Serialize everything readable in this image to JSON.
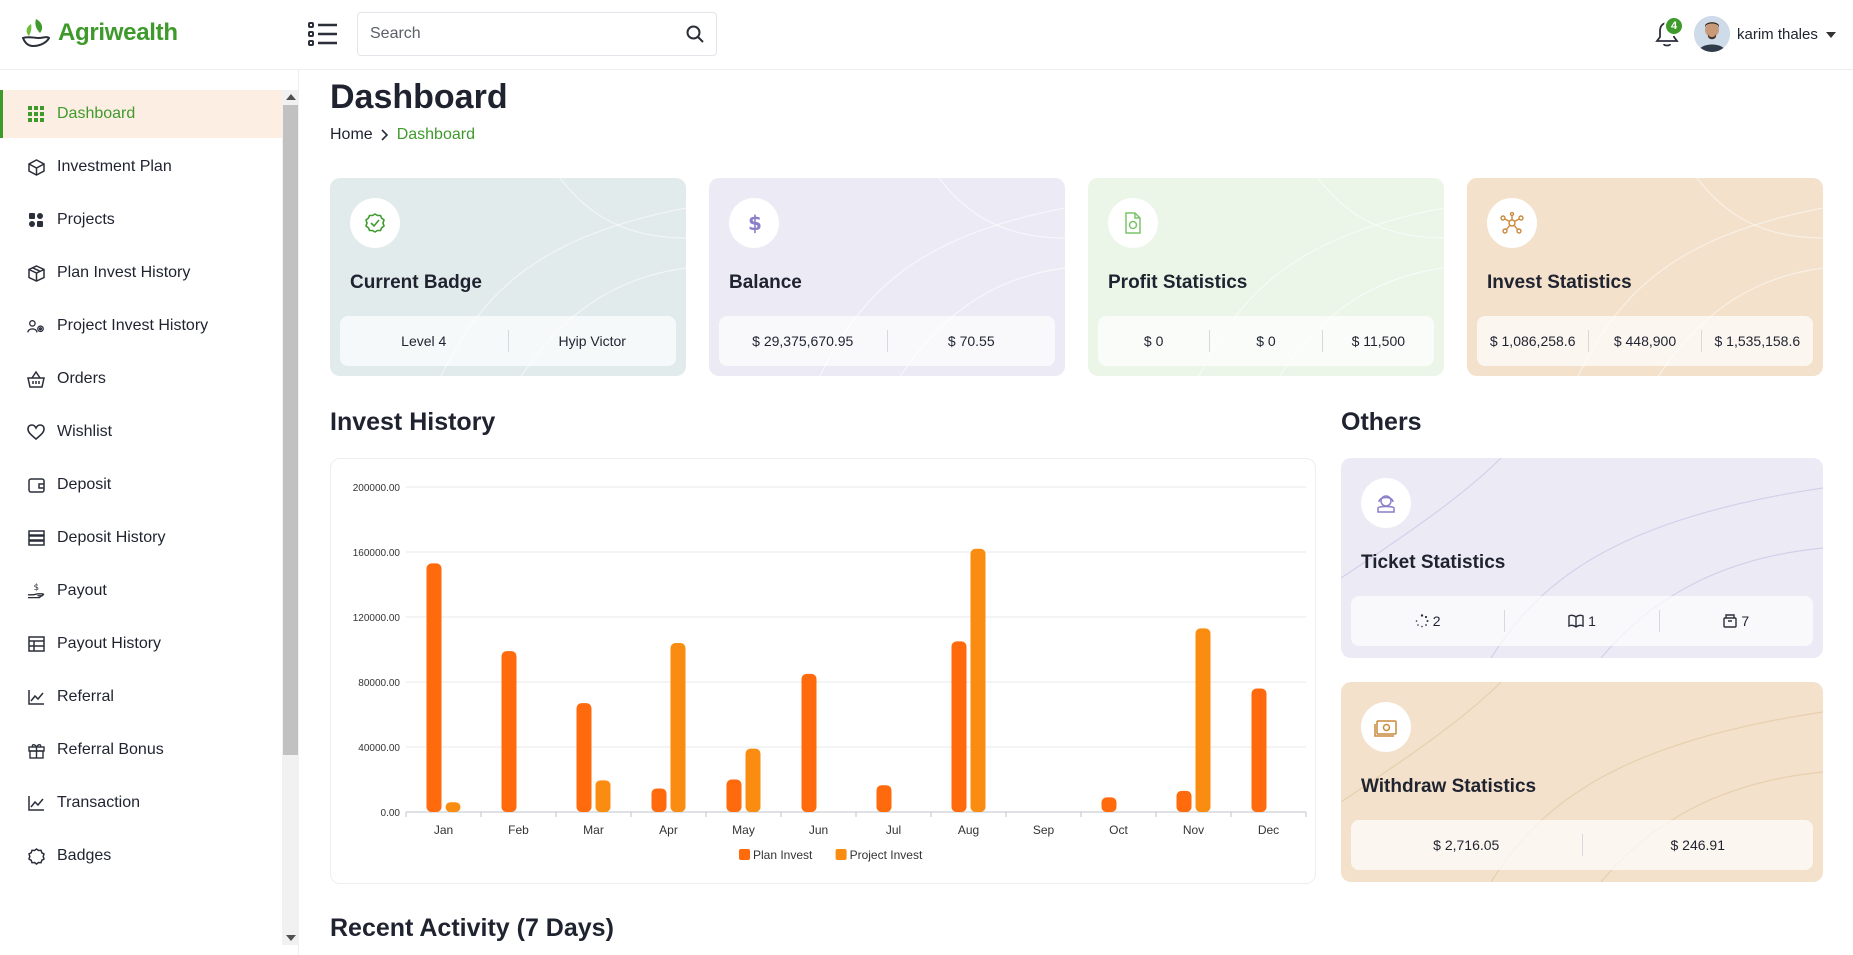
{
  "app": {
    "brand": "Agriwealth"
  },
  "search": {
    "placeholder": "Search"
  },
  "notifications": {
    "count": "4"
  },
  "user": {
    "name": "karim thales"
  },
  "sidebar": {
    "items": [
      {
        "label": "Dashboard",
        "icon": "grid-icon",
        "active": true
      },
      {
        "label": "Investment Plan",
        "icon": "cube-icon"
      },
      {
        "label": "Projects",
        "icon": "puzzle-icon"
      },
      {
        "label": "Plan Invest History",
        "icon": "box-icon"
      },
      {
        "label": "Project Invest History",
        "icon": "people-gear-icon"
      },
      {
        "label": "Orders",
        "icon": "basket-icon"
      },
      {
        "label": "Wishlist",
        "icon": "heart-icon"
      },
      {
        "label": "Deposit",
        "icon": "wallet-icon"
      },
      {
        "label": "Deposit History",
        "icon": "server-icon"
      },
      {
        "label": "Payout",
        "icon": "hand-dollar-icon"
      },
      {
        "label": "Payout History",
        "icon": "table-icon"
      },
      {
        "label": "Referral",
        "icon": "chart-line-icon"
      },
      {
        "label": "Referral Bonus",
        "icon": "gift-icon"
      },
      {
        "label": "Transaction",
        "icon": "chart-line-icon"
      },
      {
        "label": "Badges",
        "icon": "badge-icon"
      }
    ]
  },
  "page": {
    "title": "Dashboard",
    "breadcrumb": {
      "home": "Home",
      "current": "Dashboard"
    }
  },
  "cards": [
    {
      "title": "Current Badge",
      "icon": "check-badge-icon",
      "bg": "#e2ebec",
      "accent": "#3f9a2c",
      "values": [
        "Level 4",
        "Hyip Victor"
      ]
    },
    {
      "title": "Balance",
      "icon": "dollar-icon",
      "bg": "#eceaf5",
      "accent": "#8a7fc9",
      "values": [
        "$ 29,375,670.95",
        "$ 70.55"
      ]
    },
    {
      "title": "Profit Statistics",
      "icon": "file-dollar-icon",
      "bg": "#ebf5e8",
      "accent": "#7cc46a",
      "values": [
        "$ 0",
        "$ 0",
        "$ 11,500"
      ]
    },
    {
      "title": "Invest Statistics",
      "icon": "share-nodes-icon",
      "bg": "#f3e1cb",
      "accent": "#c98a3b",
      "values": [
        "$ 1,086,258.6",
        "$ 448,900",
        "$ 1,535,158.6"
      ]
    }
  ],
  "invest_history": {
    "title": "Invest History"
  },
  "chart_data": {
    "type": "bar",
    "categories": [
      "Jan",
      "Feb",
      "Mar",
      "Apr",
      "May",
      "Jun",
      "Jul",
      "Aug",
      "Sep",
      "Oct",
      "Nov",
      "Dec"
    ],
    "series": [
      {
        "name": "Plan Invest",
        "color": "#ff6a0d",
        "values": [
          153000,
          99000,
          67000,
          14500,
          20000,
          85000,
          16500,
          105000,
          0,
          9000,
          13000,
          76000
        ]
      },
      {
        "name": "Project Invest",
        "color": "#fb8c12",
        "values": [
          6000,
          0,
          19500,
          104000,
          39000,
          0,
          0,
          162000,
          0,
          0,
          113000,
          0
        ]
      }
    ],
    "yticks": [
      "0.00",
      "40000.00",
      "80000.00",
      "120000.00",
      "160000.00",
      "200000.00"
    ],
    "ylim": [
      0,
      200000
    ],
    "legend": "bottom-center",
    "grid": true
  },
  "others": {
    "title": "Others",
    "ticket": {
      "title": "Ticket Statistics",
      "bg": "#eceaf5",
      "accent": "#8a7fc9",
      "values": [
        "2",
        "1",
        "7"
      ]
    },
    "withdraw": {
      "title": "Withdraw Statistics",
      "bg": "#f3e1cb",
      "accent": "#c98a3b",
      "values": [
        "$ 2,716.05",
        "$ 246.91"
      ]
    }
  },
  "recent": {
    "title": "Recent Activity (7 Days)"
  }
}
